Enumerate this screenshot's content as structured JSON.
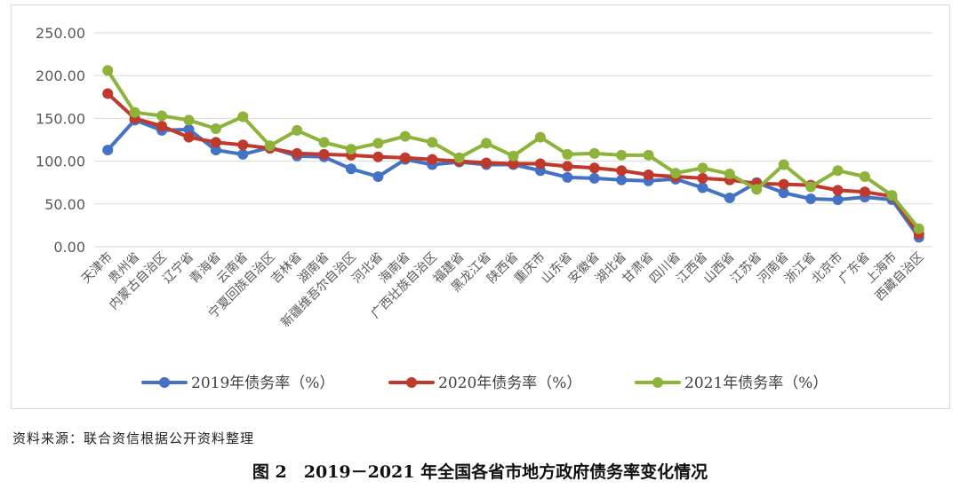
{
  "source_note": "资料来源：联合资信根据公开资料整理",
  "caption": "图 2　2019－2021 年全国各省市地方政府债务率变化情况",
  "chart_data": {
    "type": "line",
    "categories": [
      "天津市",
      "贵州省",
      "内蒙古自治区",
      "辽宁省",
      "青海省",
      "云南省",
      "宁夏回族自治区",
      "吉林省",
      "湖南省",
      "新疆维吾尔自治区",
      "河北省",
      "海南省",
      "广西壮族自治区",
      "福建省",
      "黑龙江省",
      "陕西省",
      "重庆市",
      "山东省",
      "安徽省",
      "湖北省",
      "甘肃省",
      "四川省",
      "江西省",
      "山西省",
      "江苏省",
      "河南省",
      "浙江省",
      "北京市",
      "广东省",
      "上海市",
      "西藏自治区"
    ],
    "y_ticks": [
      "250.00",
      "200.00",
      "150.00",
      "100.00",
      "50.00",
      "0.00"
    ],
    "ylim": [
      0,
      250
    ],
    "grid": true,
    "legend_position": "bottom",
    "series": [
      {
        "name": "2019年债务率（%）",
        "color": "#4472C4",
        "values": [
          113,
          148,
          136,
          137,
          113,
          108,
          116,
          106,
          105,
          91,
          82,
          102,
          96,
          99,
          96,
          96,
          89,
          81,
          80,
          78,
          77,
          79,
          69,
          57,
          75,
          63,
          56,
          55,
          58,
          55,
          11
        ]
      },
      {
        "name": "2020年债务率（%）",
        "color": "#C0392B",
        "values": [
          179,
          150,
          141,
          128,
          122,
          119,
          115,
          109,
          108,
          107,
          105,
          104,
          102,
          100,
          98,
          97,
          97,
          94,
          92,
          89,
          84,
          82,
          80,
          78,
          74,
          73,
          72,
          66,
          64,
          59,
          15
        ]
      },
      {
        "name": "2021年债务率（%）",
        "color": "#8DB33A",
        "values": [
          206,
          157,
          153,
          148,
          138,
          152,
          118,
          136,
          122,
          114,
          121,
          129,
          122,
          104,
          121,
          106,
          128,
          108,
          109,
          107,
          107,
          86,
          92,
          85,
          67,
          96,
          70,
          89,
          82,
          60,
          21
        ]
      }
    ]
  }
}
